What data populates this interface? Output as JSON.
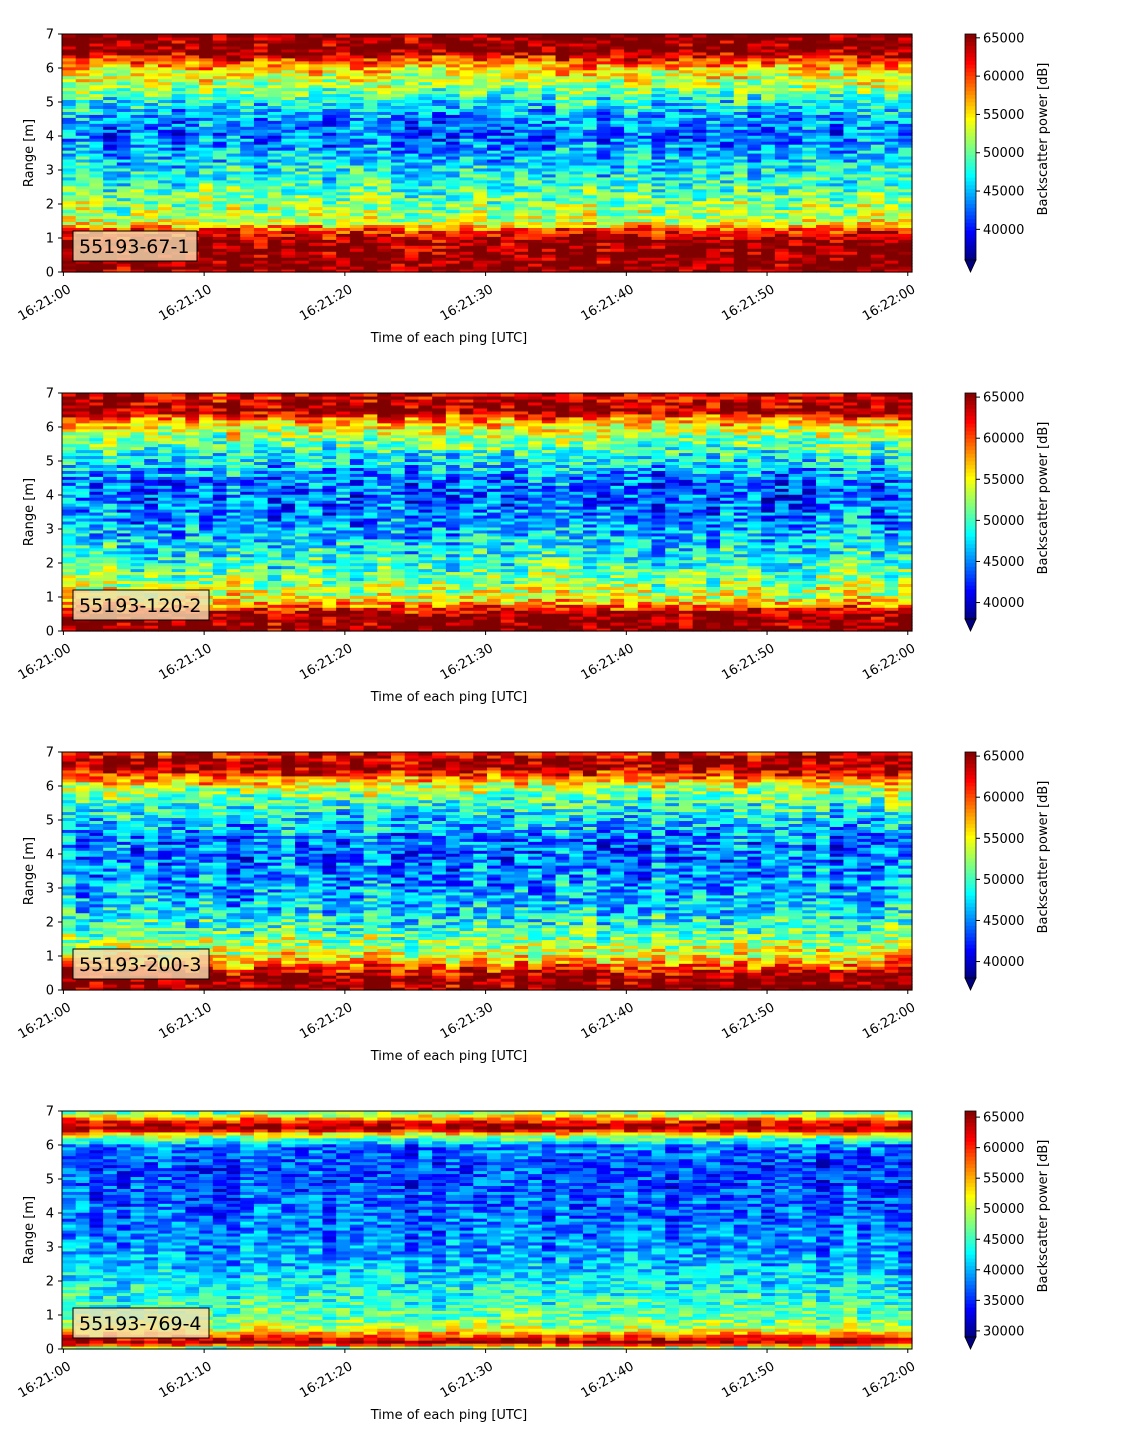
{
  "chart_data": [
    {
      "type": "heatmap",
      "panel_label": "55193-67-1",
      "xlabel": "Time of each ping [UTC]",
      "ylabel": "Range [m]",
      "x_ticks": [
        "16:21:00",
        "16:21:10",
        "16:21:20",
        "16:21:30",
        "16:21:40",
        "16:21:50",
        "16:22:00"
      ],
      "y_ticks": [
        "0",
        "1",
        "2",
        "3",
        "4",
        "5",
        "6",
        "7"
      ],
      "xlim": [
        "16:20:59",
        "16:22:00"
      ],
      "ylim": [
        0,
        7
      ],
      "colorbar": {
        "label": "Backscatter power [dB]",
        "min": 36000,
        "max": 65500,
        "extend": "min",
        "ticks": [
          "40000",
          "45000",
          "50000",
          "55000",
          "60000",
          "65000"
        ]
      },
      "colormap": "jet",
      "profile_description": "strong near-surface band at 0-1 m, elevated 1.5-2.5 m, weak 3-5 m, strong above 6.2 m",
      "profile_m_vs_db": [
        [
          0.0,
          65500
        ],
        [
          0.2,
          65500
        ],
        [
          0.9,
          65500
        ],
        [
          1.2,
          61000
        ],
        [
          1.5,
          53000
        ],
        [
          2.0,
          51000
        ],
        [
          2.5,
          49000
        ],
        [
          3.0,
          47000
        ],
        [
          3.5,
          45000
        ],
        [
          4.0,
          43000
        ],
        [
          4.5,
          44000
        ],
        [
          5.0,
          47000
        ],
        [
          5.5,
          52000
        ],
        [
          6.0,
          56000
        ],
        [
          6.3,
          61000
        ],
        [
          6.5,
          65500
        ],
        [
          7.0,
          65500
        ]
      ]
    },
    {
      "type": "heatmap",
      "panel_label": "55193-120-2",
      "xlabel": "Time of each ping [UTC]",
      "ylabel": "Range [m]",
      "x_ticks": [
        "16:21:00",
        "16:21:10",
        "16:21:20",
        "16:21:30",
        "16:21:40",
        "16:21:50",
        "16:22:00"
      ],
      "y_ticks": [
        "0",
        "1",
        "2",
        "3",
        "4",
        "5",
        "6",
        "7"
      ],
      "xlim": [
        "16:20:59",
        "16:22:00"
      ],
      "ylim": [
        0,
        7
      ],
      "colorbar": {
        "label": "Backscatter power [dB]",
        "min": 38000,
        "max": 65500,
        "extend": "min",
        "ticks": [
          "40000",
          "45000",
          "50000",
          "55000",
          "60000",
          "65000"
        ]
      },
      "colormap": "jet",
      "profile_m_vs_db": [
        [
          0.0,
          65500
        ],
        [
          0.5,
          65500
        ],
        [
          0.7,
          60000
        ],
        [
          1.0,
          55000
        ],
        [
          1.5,
          52000
        ],
        [
          2.0,
          50000
        ],
        [
          2.5,
          48000
        ],
        [
          3.0,
          46000
        ],
        [
          3.5,
          45000
        ],
        [
          4.0,
          44000
        ],
        [
          4.5,
          45000
        ],
        [
          5.0,
          48000
        ],
        [
          5.5,
          51000
        ],
        [
          6.0,
          55000
        ],
        [
          6.3,
          60000
        ],
        [
          6.5,
          65500
        ],
        [
          7.0,
          63000
        ]
      ]
    },
    {
      "type": "heatmap",
      "panel_label": "55193-200-3",
      "xlabel": "Time of each ping [UTC]",
      "ylabel": "Range [m]",
      "x_ticks": [
        "16:21:00",
        "16:21:10",
        "16:21:20",
        "16:21:30",
        "16:21:40",
        "16:21:50",
        "16:22:00"
      ],
      "y_ticks": [
        "0",
        "1",
        "2",
        "3",
        "4",
        "5",
        "6",
        "7"
      ],
      "xlim": [
        "16:20:59",
        "16:22:00"
      ],
      "ylim": [
        0,
        7
      ],
      "colorbar": {
        "label": "Backscatter power [dB]",
        "min": 38000,
        "max": 65500,
        "extend": "min",
        "ticks": [
          "40000",
          "45000",
          "50000",
          "55000",
          "60000",
          "65000"
        ]
      },
      "colormap": "jet",
      "profile_m_vs_db": [
        [
          0.0,
          65500
        ],
        [
          0.4,
          65500
        ],
        [
          0.7,
          60000
        ],
        [
          1.0,
          55000
        ],
        [
          1.5,
          52000
        ],
        [
          2.0,
          49000
        ],
        [
          2.5,
          47000
        ],
        [
          3.0,
          46000
        ],
        [
          3.5,
          45000
        ],
        [
          4.0,
          44000
        ],
        [
          4.5,
          45000
        ],
        [
          5.0,
          47000
        ],
        [
          5.5,
          50000
        ],
        [
          6.0,
          54000
        ],
        [
          6.3,
          60000
        ],
        [
          6.6,
          65500
        ],
        [
          7.0,
          62000
        ]
      ]
    },
    {
      "type": "heatmap",
      "panel_label": "55193-769-4",
      "xlabel": "Time of each ping [UTC]",
      "ylabel": "Range [m]",
      "x_ticks": [
        "16:21:00",
        "16:21:10",
        "16:21:20",
        "16:21:30",
        "16:21:40",
        "16:21:50",
        "16:22:00"
      ],
      "y_ticks": [
        "0",
        "1",
        "2",
        "3",
        "4",
        "5",
        "6",
        "7"
      ],
      "xlim": [
        "16:20:59",
        "16:22:00"
      ],
      "ylim": [
        0,
        7
      ],
      "colorbar": {
        "label": "Backscatter power [dB]",
        "min": 29000,
        "max": 66000,
        "extend": "min",
        "ticks": [
          "30000",
          "35000",
          "40000",
          "45000",
          "50000",
          "55000",
          "60000",
          "65000"
        ]
      },
      "colormap": "jet",
      "profile_m_vs_db": [
        [
          0.0,
          42000
        ],
        [
          0.2,
          66000
        ],
        [
          0.35,
          60000
        ],
        [
          0.6,
          50000
        ],
        [
          1.0,
          46000
        ],
        [
          1.5,
          44000
        ],
        [
          2.0,
          42000
        ],
        [
          2.5,
          40000
        ],
        [
          3.0,
          38500
        ],
        [
          3.5,
          37500
        ],
        [
          4.0,
          37000
        ],
        [
          4.5,
          36500
        ],
        [
          5.0,
          36000
        ],
        [
          5.5,
          36000
        ],
        [
          6.0,
          38000
        ],
        [
          6.3,
          50000
        ],
        [
          6.5,
          66000
        ],
        [
          6.7,
          60000
        ],
        [
          7.0,
          45000
        ]
      ]
    }
  ]
}
